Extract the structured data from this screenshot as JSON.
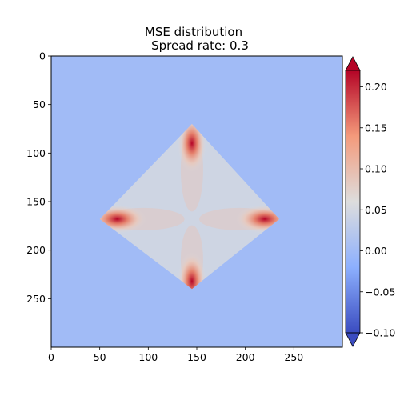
{
  "chart_data": {
    "type": "heatmap",
    "title_lines": [
      "MSE distribution",
      "Spread rate: 0.3"
    ],
    "xlabel": "",
    "ylabel": "",
    "image_size": [
      300,
      300
    ],
    "xlim": [
      0,
      300
    ],
    "ylim": [
      300,
      0
    ],
    "x_ticks": [
      0,
      50,
      100,
      150,
      200,
      250
    ],
    "y_ticks": [
      0,
      50,
      100,
      150,
      200,
      250
    ],
    "colormap": "coolwarm",
    "colorbar": {
      "min": -0.1,
      "max": 0.22,
      "ticks": [
        -0.1,
        -0.05,
        0.0,
        0.05,
        0.1,
        0.15,
        0.2
      ],
      "tick_labels": [
        "−0.10",
        "−0.05",
        "0.00",
        "0.05",
        "0.10",
        "0.15",
        "0.20"
      ],
      "extend": "both"
    },
    "background_value": 0.0,
    "region": {
      "shape": "diamond",
      "center": [
        145,
        168
      ],
      "vertices": [
        [
          145,
          70
        ],
        [
          235,
          168
        ],
        [
          145,
          240
        ],
        [
          50,
          168
        ]
      ],
      "base_value": 0.045,
      "hotspots": [
        {
          "x": 145,
          "y": 90,
          "value": 0.21
        },
        {
          "x": 220,
          "y": 168,
          "value": 0.19
        },
        {
          "x": 145,
          "y": 232,
          "value": 0.22
        },
        {
          "x": 68,
          "y": 168,
          "value": 0.21
        }
      ]
    }
  }
}
